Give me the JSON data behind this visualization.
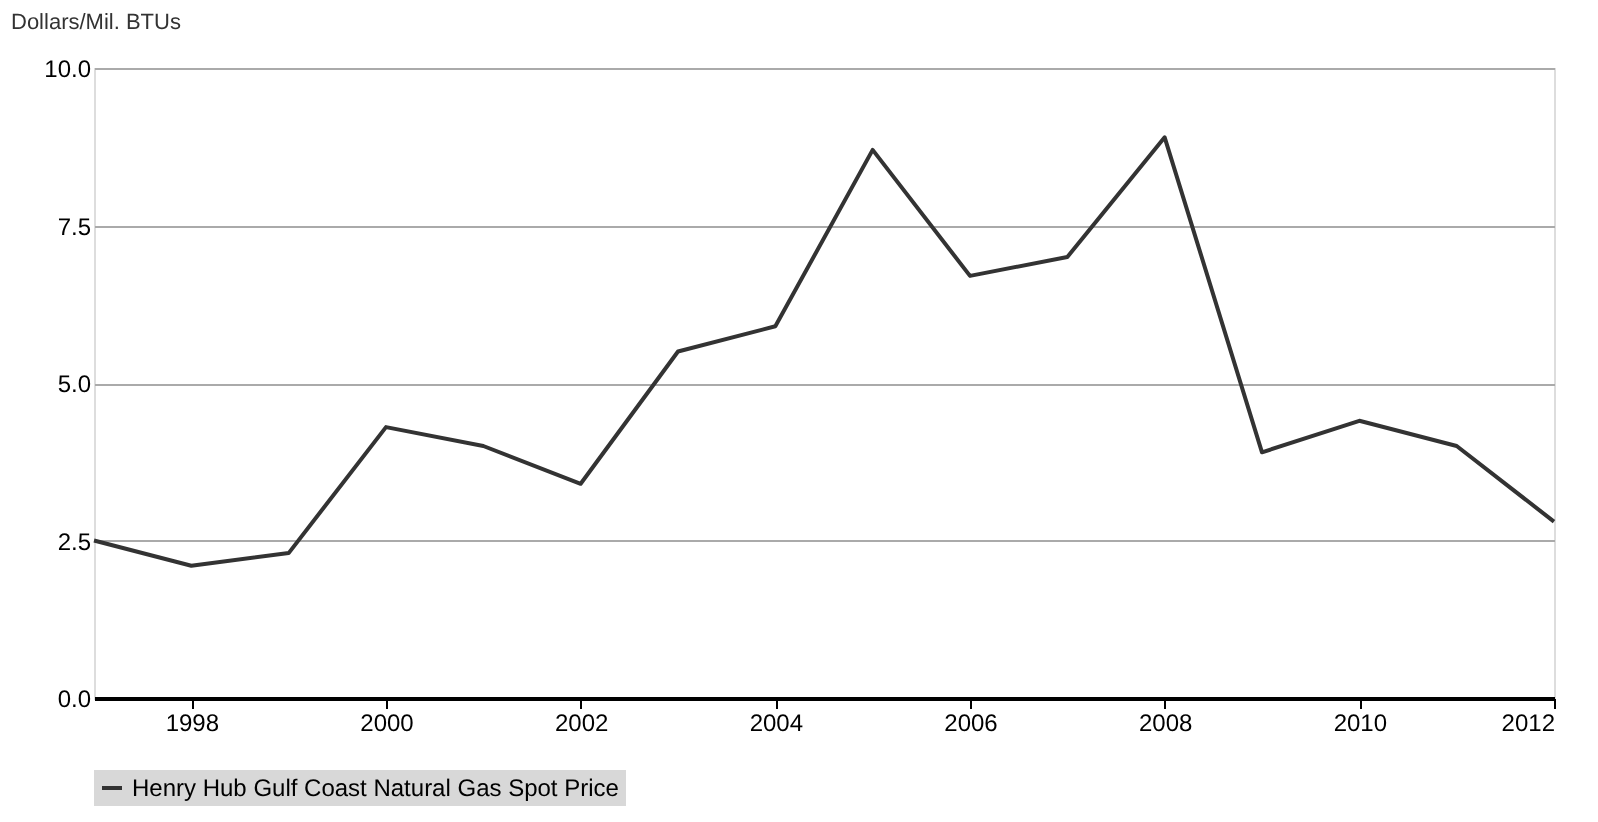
{
  "chart_data": {
    "type": "line",
    "ylabel": "Dollars/Mil. BTUs",
    "x": [
      1997,
      1998,
      1999,
      2000,
      2001,
      2002,
      2003,
      2004,
      2005,
      2006,
      2007,
      2008,
      2009,
      2010,
      2011,
      2012
    ],
    "series": [
      {
        "name": "Henry Hub Gulf Coast Natural Gas Spot Price",
        "color": "#333333",
        "values": [
          2.5,
          2.1,
          2.3,
          4.3,
          4.0,
          3.4,
          5.5,
          5.9,
          8.7,
          6.7,
          7.0,
          8.9,
          3.9,
          4.4,
          4.0,
          2.8
        ]
      }
    ],
    "xlim": [
      1997,
      2012
    ],
    "xticks": [
      1998,
      2000,
      2002,
      2004,
      2006,
      2008,
      2010,
      2012
    ],
    "ylim": [
      0,
      10
    ],
    "yticks": [
      {
        "value": 0,
        "label": "0.0"
      },
      {
        "value": 2.5,
        "label": "2.5"
      },
      {
        "value": 5,
        "label": "5.0"
      },
      {
        "value": 7.5,
        "label": "7.5"
      },
      {
        "value": 10,
        "label": "10.0"
      }
    ],
    "grid": "y",
    "legend": "bottom",
    "marker": "none",
    "line_style": "solid"
  }
}
